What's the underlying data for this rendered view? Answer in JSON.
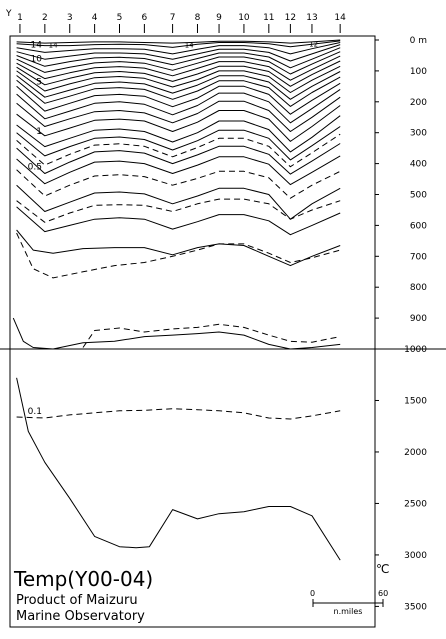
{
  "chart_data": {
    "type": "line",
    "title": "Temp(Y00-04)",
    "credit_lines": [
      "Product of Maizuru",
      "Marine Observatory"
    ],
    "unit": "℃",
    "y_axis_letter": "Y",
    "stations": [
      "1",
      "2",
      "3",
      "4",
      "5",
      "6",
      "7",
      "8",
      "9",
      "10",
      "11",
      "12",
      "13",
      "14"
    ],
    "station_x": [
      0.6,
      2.1,
      3.6,
      5.1,
      6.6,
      8.1,
      9.8,
      11.3,
      12.6,
      14.1,
      15.6,
      16.9,
      18.2,
      19.9
    ],
    "x_range": [
      0,
      22
    ],
    "depth_axis": {
      "upper": {
        "range": [
          0,
          1000
        ],
        "ticks": [
          0,
          100,
          200,
          300,
          400,
          500,
          600,
          700,
          800,
          900,
          1000
        ],
        "tick_labels": [
          "0 m",
          "100",
          "200",
          "300",
          "400",
          "500",
          "600",
          "700",
          "800",
          "900",
          "1000"
        ]
      },
      "lower": {
        "range": [
          1000,
          3700
        ],
        "ticks": [
          1500,
          2000,
          2500,
          3000,
          3500
        ],
        "tick_labels": [
          "1500",
          "2000",
          "2500",
          "3000",
          "3500"
        ]
      }
    },
    "contour_labels_left": [
      {
        "text": "14",
        "depth": 14
      },
      {
        "text": "10",
        "depth": 60
      },
      {
        "text": "5",
        "depth": 135
      },
      {
        "text": "1",
        "depth": 295
      },
      {
        "text": "0.5",
        "depth": 410
      },
      {
        "text": "0.1",
        "depth": 1600
      }
    ],
    "contour_labels_inline": [
      {
        "text": "14",
        "x": 2.6,
        "depth": 14
      },
      {
        "text": "14",
        "x": 10.8,
        "depth": 14
      },
      {
        "text": "12",
        "x": 18.3,
        "depth": 12
      }
    ],
    "series": [
      {
        "style": "solid",
        "x": [
          0.4,
          2.1,
          3.6,
          5.1,
          6.6,
          8.1,
          9.8,
          11.3,
          12.6,
          14.1,
          15.6,
          16.9,
          18.2,
          19.9
        ],
        "depth": [
          6,
          10,
          8,
          6,
          6,
          8,
          10,
          7,
          4,
          4,
          6,
          10,
          6,
          0
        ]
      },
      {
        "style": "solid",
        "x": [
          0.4,
          2.1,
          3.6,
          5.1,
          6.6,
          8.1,
          9.8,
          11.3,
          12.6,
          14.1,
          15.6,
          16.9,
          18.2,
          19.9
        ],
        "depth": [
          12,
          18,
          18,
          15,
          14,
          15,
          24,
          14,
          8,
          8,
          12,
          22,
          14,
          3
        ]
      },
      {
        "style": "solid",
        "x": [
          0.4,
          2.1,
          3.6,
          5.1,
          6.6,
          8.1,
          9.8,
          11.3,
          12.6,
          14.1,
          15.6,
          16.9,
          18.2,
          19.9
        ],
        "depth": [
          25,
          40,
          34,
          28,
          28,
          30,
          45,
          30,
          18,
          18,
          25,
          45,
          28,
          8
        ]
      },
      {
        "style": "solid",
        "x": [
          0.4,
          2.1,
          3.6,
          5.1,
          6.6,
          8.1,
          9.8,
          11.3,
          12.6,
          14.1,
          15.6,
          16.9,
          18.2,
          19.9
        ],
        "depth": [
          38,
          62,
          52,
          42,
          42,
          45,
          62,
          45,
          30,
          30,
          40,
          68,
          45,
          15
        ]
      },
      {
        "style": "solid",
        "x": [
          0.4,
          2.1,
          3.6,
          5.1,
          6.6,
          8.1,
          9.8,
          11.3,
          12.6,
          14.1,
          15.6,
          16.9,
          18.2,
          19.9
        ],
        "depth": [
          50,
          85,
          70,
          58,
          56,
          60,
          80,
          60,
          42,
          42,
          55,
          90,
          62,
          25
        ]
      },
      {
        "style": "solid",
        "x": [
          0.4,
          2.1,
          3.6,
          5.1,
          6.6,
          8.1,
          9.8,
          11.3,
          12.6,
          14.1,
          15.6,
          16.9,
          18.2,
          19.9
        ],
        "depth": [
          62,
          105,
          88,
          74,
          70,
          75,
          98,
          75,
          55,
          55,
          70,
          110,
          78,
          38
        ]
      },
      {
        "style": "solid",
        "x": [
          0.4,
          2.1,
          3.6,
          5.1,
          6.6,
          8.1,
          9.8,
          11.3,
          12.6,
          14.1,
          15.6,
          16.9,
          18.2,
          19.9
        ],
        "depth": [
          75,
          125,
          106,
          90,
          86,
          91,
          116,
          92,
          70,
          70,
          86,
          130,
          95,
          52
        ]
      },
      {
        "style": "solid",
        "x": [
          0.4,
          2.1,
          3.6,
          5.1,
          6.6,
          8.1,
          9.8,
          11.3,
          12.6,
          14.1,
          15.6,
          16.9,
          18.2,
          19.9
        ],
        "depth": [
          88,
          145,
          124,
          106,
          102,
          108,
          134,
          110,
          85,
          85,
          102,
          150,
          112,
          68
        ]
      },
      {
        "style": "solid",
        "x": [
          0.4,
          2.1,
          3.6,
          5.1,
          6.6,
          8.1,
          9.8,
          11.3,
          12.6,
          14.1,
          15.6,
          16.9,
          18.2,
          19.9
        ],
        "depth": [
          100,
          165,
          142,
          122,
          118,
          124,
          152,
          128,
          100,
          100,
          118,
          170,
          130,
          85
        ]
      },
      {
        "style": "solid",
        "x": [
          0.4,
          2.1,
          3.6,
          5.1,
          6.6,
          8.1,
          9.8,
          11.3,
          12.6,
          14.1,
          15.6,
          16.9,
          18.2,
          19.9
        ],
        "depth": [
          115,
          185,
          162,
          140,
          136,
          142,
          172,
          146,
          116,
          116,
          136,
          192,
          150,
          102
        ]
      },
      {
        "style": "solid",
        "x": [
          0.4,
          2.1,
          3.6,
          5.1,
          6.6,
          8.1,
          9.8,
          11.3,
          12.6,
          14.1,
          15.6,
          16.9,
          18.2,
          19.9
        ],
        "depth": [
          130,
          205,
          182,
          158,
          154,
          160,
          192,
          165,
          132,
          132,
          154,
          215,
          170,
          120
        ]
      },
      {
        "style": "solid",
        "x": [
          0.4,
          2.1,
          3.6,
          5.1,
          6.6,
          8.1,
          9.8,
          11.3,
          12.6,
          14.1,
          15.6,
          16.9,
          18.2,
          19.9
        ],
        "depth": [
          150,
          230,
          205,
          180,
          176,
          182,
          216,
          188,
          150,
          150,
          176,
          240,
          195,
          140
        ]
      },
      {
        "style": "solid",
        "x": [
          0.4,
          2.1,
          3.6,
          5.1,
          6.6,
          8.1,
          9.8,
          11.3,
          12.6,
          14.1,
          15.6,
          16.9,
          18.2,
          19.9
        ],
        "depth": [
          175,
          255,
          230,
          205,
          200,
          208,
          242,
          212,
          172,
          172,
          200,
          268,
          222,
          160
        ]
      },
      {
        "style": "solid",
        "x": [
          0.4,
          2.1,
          3.6,
          5.1,
          6.6,
          8.1,
          9.8,
          11.3,
          12.6,
          14.1,
          15.6,
          16.9,
          18.2,
          19.9
        ],
        "depth": [
          205,
          280,
          255,
          232,
          228,
          236,
          268,
          238,
          198,
          198,
          228,
          296,
          250,
          185
        ]
      },
      {
        "style": "solid",
        "x": [
          0.4,
          2.1,
          3.6,
          5.1,
          6.6,
          8.1,
          9.8,
          11.3,
          12.6,
          14.1,
          15.6,
          16.9,
          18.2,
          19.9
        ],
        "depth": [
          240,
          310,
          285,
          260,
          256,
          262,
          296,
          266,
          228,
          228,
          256,
          328,
          280,
          212
        ]
      },
      {
        "style": "solid",
        "x": [
          0.4,
          2.1,
          3.6,
          5.1,
          6.6,
          8.1,
          9.8,
          11.3,
          12.6,
          14.1,
          15.6,
          16.9,
          18.2,
          19.9
        ],
        "depth": [
          275,
          345,
          318,
          292,
          288,
          296,
          330,
          300,
          262,
          262,
          290,
          362,
          315,
          245
        ]
      },
      {
        "style": "solid",
        "x": [
          0.4,
          2.1,
          3.6,
          5.1,
          6.6,
          8.1,
          9.8,
          11.3,
          12.6,
          14.1,
          15.6,
          16.9,
          18.2,
          19.9
        ],
        "depth": [
          300,
          375,
          345,
          318,
          314,
          322,
          356,
          326,
          292,
          292,
          318,
          388,
          342,
          280
        ]
      },
      {
        "style": "dashed",
        "x": [
          0.4,
          2.1,
          3.6,
          5.1,
          6.6,
          8.1,
          9.8,
          11.3,
          12.6,
          14.1,
          15.6,
          16.9,
          18.2,
          19.9
        ],
        "depth": [
          325,
          405,
          370,
          340,
          336,
          344,
          378,
          348,
          318,
          318,
          344,
          410,
          365,
          305
        ]
      },
      {
        "style": "solid",
        "x": [
          0.4,
          2.1,
          3.6,
          5.1,
          6.6,
          8.1,
          9.8,
          11.3,
          12.6,
          14.1,
          15.6,
          16.9,
          18.2,
          19.9
        ],
        "depth": [
          350,
          432,
          395,
          362,
          358,
          366,
          400,
          372,
          344,
          344,
          370,
          434,
          392,
          335
        ]
      },
      {
        "style": "solid",
        "x": [
          0.4,
          2.1,
          3.6,
          5.1,
          6.6,
          8.1,
          9.8,
          11.3,
          12.6,
          14.1,
          15.6,
          16.9,
          18.2,
          19.9
        ],
        "depth": [
          385,
          465,
          428,
          395,
          392,
          400,
          432,
          405,
          378,
          378,
          402,
          468,
          428,
          375
        ]
      },
      {
        "style": "dashed",
        "x": [
          0.4,
          2.1,
          3.6,
          5.1,
          6.6,
          8.1,
          9.8,
          11.3,
          12.6,
          14.1,
          15.6,
          16.9,
          18.2,
          19.9
        ],
        "depth": [
          420,
          505,
          470,
          440,
          436,
          442,
          470,
          448,
          425,
          425,
          446,
          512,
          470,
          425
        ]
      },
      {
        "style": "solid",
        "x": [
          0.4,
          2.1,
          3.6,
          5.1,
          6.6,
          8.1,
          9.8,
          11.3,
          12.6,
          14.1,
          15.6,
          16.9,
          18.2,
          19.9
        ],
        "depth": [
          470,
          555,
          525,
          495,
          492,
          498,
          530,
          505,
          480,
          480,
          500,
          580,
          530,
          480
        ]
      },
      {
        "style": "dashed",
        "x": [
          0.4,
          2.1,
          3.6,
          5.1,
          6.6,
          8.1,
          9.8,
          11.3,
          12.6,
          14.1,
          15.6,
          16.9,
          18.2,
          19.9
        ],
        "depth": [
          520,
          590,
          560,
          535,
          533,
          535,
          555,
          530,
          515,
          515,
          530,
          580,
          550,
          520
        ]
      },
      {
        "style": "solid",
        "x": [
          0.4,
          2.1,
          3.6,
          5.1,
          6.6,
          8.1,
          9.8,
          11.3,
          12.6,
          14.1,
          15.6,
          16.9,
          18.2,
          19.9
        ],
        "depth": [
          540,
          620,
          600,
          580,
          575,
          580,
          612,
          588,
          565,
          565,
          585,
          630,
          600,
          560
        ]
      },
      {
        "style": "solid",
        "x": [
          0.4,
          1.4,
          2.6,
          4.4,
          6.3,
          8.1,
          9.8,
          11.3,
          12.6,
          14.1,
          15.6,
          16.9,
          18.2,
          19.9
        ],
        "depth": [
          615,
          680,
          690,
          675,
          672,
          672,
          695,
          672,
          660,
          665,
          700,
          730,
          700,
          665
        ]
      },
      {
        "style": "dashed",
        "x": [
          0.4,
          1.4,
          2.6,
          4.4,
          6.3,
          8.1,
          9.8,
          11.3,
          12.6,
          14.1,
          15.6,
          16.9,
          18.2,
          19.9
        ],
        "depth": [
          625,
          740,
          770,
          750,
          730,
          720,
          700,
          680,
          660,
          660,
          690,
          720,
          705,
          680
        ]
      },
      {
        "style": "solid",
        "x": [
          0.2,
          0.8,
          1.4,
          2.6,
          4.4,
          6.3,
          8.1,
          9.8,
          11.3,
          12.6,
          14.1,
          15.6,
          16.9,
          18.2,
          19.9
        ],
        "depth": [
          900,
          975,
          995,
          1000,
          980,
          975,
          960,
          955,
          950,
          945,
          955,
          985,
          1000,
          995,
          985
        ]
      },
      {
        "style": "dashed",
        "x": [
          4.4,
          5.1,
          6.6,
          8.1,
          9.8,
          11.3,
          12.6,
          14.1,
          15.6,
          16.9,
          18.2,
          19.9
        ],
        "depth": [
          995,
          940,
          932,
          945,
          935,
          930,
          920,
          930,
          955,
          975,
          978,
          960
        ]
      },
      {
        "style": "dashed",
        "x": [
          0.4,
          2.1,
          3.6,
          5.1,
          6.6,
          8.1,
          9.8,
          11.3,
          12.6,
          14.1,
          15.6,
          16.9,
          18.2,
          19.9
        ],
        "depth": [
          1660,
          1670,
          1640,
          1620,
          1600,
          1595,
          1580,
          1590,
          1600,
          1620,
          1670,
          1680,
          1650,
          1600
        ]
      },
      {
        "style": "solid",
        "x": [
          0.4,
          1.1,
          2.1,
          3.6,
          5.1,
          6.6,
          7.6,
          8.4,
          9.8,
          11.3,
          12.6,
          14.1,
          15.6,
          16.9,
          18.2,
          19.9
        ],
        "depth": [
          1280,
          1800,
          2100,
          2450,
          2820,
          2920,
          2930,
          2920,
          2560,
          2650,
          2600,
          2580,
          2530,
          2530,
          2620,
          3050
        ]
      }
    ],
    "scale_bar": {
      "start_label": "0",
      "end_label": "60",
      "unit_label": "n.miles"
    }
  }
}
